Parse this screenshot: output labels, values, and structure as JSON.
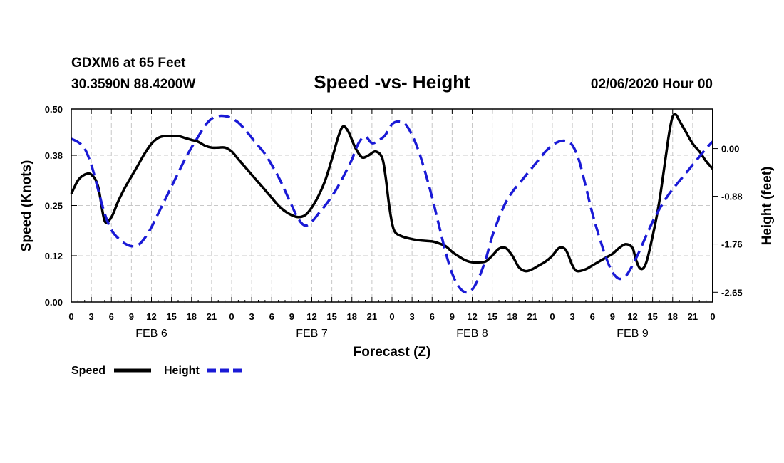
{
  "header": {
    "station": "GDXM6 at 65 Feet",
    "location": "30.3590N 88.4200W",
    "title": "Speed -vs- Height",
    "datetime": "02/06/2020 Hour 00"
  },
  "chart_data": {
    "type": "line",
    "title": "Speed -vs- Height",
    "xlabel": "Forecast (Z)",
    "ylabel": "Speed (Knots)",
    "y2label": "Height (feet)",
    "xlim": [
      0,
      96
    ],
    "ylim": [
      0,
      0.5
    ],
    "y2lim": [
      -2.83,
      0.73
    ],
    "grid": true,
    "x_tick_values": [
      0,
      3,
      6,
      9,
      12,
      15,
      18,
      21,
      24,
      27,
      30,
      33,
      36,
      39,
      42,
      45,
      48,
      51,
      54,
      57,
      60,
      63,
      66,
      69,
      72,
      75,
      78,
      81,
      84,
      87,
      90,
      93,
      96
    ],
    "x_tick_labels": [
      "0",
      "3",
      "6",
      "9",
      "12",
      "15",
      "18",
      "21",
      "0",
      "3",
      "6",
      "9",
      "12",
      "15",
      "18",
      "21",
      "0",
      "3",
      "6",
      "9",
      "12",
      "15",
      "18",
      "21",
      "0",
      "3",
      "6",
      "9",
      "12",
      "15",
      "18",
      "21",
      "0"
    ],
    "day_labels": [
      {
        "label": "FEB 6",
        "hour": 12
      },
      {
        "label": "FEB 7",
        "hour": 36
      },
      {
        "label": "FEB 8",
        "hour": 60
      },
      {
        "label": "FEB 9",
        "hour": 84
      }
    ],
    "y_ticks": [
      0.0,
      0.12,
      0.25,
      0.38,
      0.5
    ],
    "y_tick_labels": [
      "0.00",
      "0.12",
      "0.25",
      "0.38",
      "0.50"
    ],
    "y2_ticks": [
      0.0,
      -0.88,
      -1.76,
      -2.65
    ],
    "y2_tick_labels": [
      "0.00",
      "-0.88",
      "-1.76",
      "-2.65"
    ],
    "series": [
      {
        "name": "Speed",
        "axis": "left",
        "color": "#000000",
        "dash": false,
        "points": [
          [
            0,
            0.28
          ],
          [
            1,
            0.315
          ],
          [
            2,
            0.33
          ],
          [
            3,
            0.33
          ],
          [
            4,
            0.3
          ],
          [
            5,
            0.21
          ],
          [
            6,
            0.22
          ],
          [
            7,
            0.26
          ],
          [
            8,
            0.295
          ],
          [
            9,
            0.325
          ],
          [
            10,
            0.355
          ],
          [
            11,
            0.385
          ],
          [
            12,
            0.41
          ],
          [
            13,
            0.425
          ],
          [
            14,
            0.43
          ],
          [
            15,
            0.43
          ],
          [
            16,
            0.43
          ],
          [
            17,
            0.425
          ],
          [
            18,
            0.42
          ],
          [
            19,
            0.415
          ],
          [
            20,
            0.405
          ],
          [
            21,
            0.4
          ],
          [
            22,
            0.4
          ],
          [
            23,
            0.4
          ],
          [
            24,
            0.39
          ],
          [
            25,
            0.37
          ],
          [
            26,
            0.35
          ],
          [
            27,
            0.33
          ],
          [
            28,
            0.31
          ],
          [
            29,
            0.29
          ],
          [
            30,
            0.27
          ],
          [
            31,
            0.25
          ],
          [
            32,
            0.235
          ],
          [
            33,
            0.225
          ],
          [
            34,
            0.22
          ],
          [
            35,
            0.225
          ],
          [
            36,
            0.245
          ],
          [
            37,
            0.275
          ],
          [
            38,
            0.315
          ],
          [
            39,
            0.37
          ],
          [
            40,
            0.43
          ],
          [
            40.7,
            0.455
          ],
          [
            41.5,
            0.44
          ],
          [
            42.5,
            0.4
          ],
          [
            43.5,
            0.375
          ],
          [
            44.5,
            0.38
          ],
          [
            45.5,
            0.39
          ],
          [
            46.5,
            0.375
          ],
          [
            47,
            0.33
          ],
          [
            47.5,
            0.26
          ],
          [
            48,
            0.205
          ],
          [
            48.5,
            0.18
          ],
          [
            49.5,
            0.17
          ],
          [
            50.5,
            0.165
          ],
          [
            52,
            0.16
          ],
          [
            54,
            0.157
          ],
          [
            55,
            0.152
          ],
          [
            56,
            0.145
          ],
          [
            57,
            0.13
          ],
          [
            58,
            0.118
          ],
          [
            59,
            0.108
          ],
          [
            60,
            0.103
          ],
          [
            61,
            0.103
          ],
          [
            62,
            0.105
          ],
          [
            63,
            0.12
          ],
          [
            64,
            0.138
          ],
          [
            65,
            0.14
          ],
          [
            66,
            0.12
          ],
          [
            67,
            0.09
          ],
          [
            68,
            0.08
          ],
          [
            69,
            0.085
          ],
          [
            70,
            0.095
          ],
          [
            71,
            0.105
          ],
          [
            72,
            0.12
          ],
          [
            73,
            0.14
          ],
          [
            74,
            0.135
          ],
          [
            75,
            0.095
          ],
          [
            75.7,
            0.08
          ],
          [
            77,
            0.085
          ],
          [
            78,
            0.095
          ],
          [
            79,
            0.105
          ],
          [
            80,
            0.115
          ],
          [
            81,
            0.125
          ],
          [
            82,
            0.14
          ],
          [
            83,
            0.15
          ],
          [
            84,
            0.14
          ],
          [
            84.5,
            0.11
          ],
          [
            85.2,
            0.086
          ],
          [
            86,
            0.1
          ],
          [
            87,
            0.17
          ],
          [
            88,
            0.26
          ],
          [
            89,
            0.38
          ],
          [
            89.5,
            0.44
          ],
          [
            90,
            0.48
          ],
          [
            90.5,
            0.485
          ],
          [
            91,
            0.47
          ],
          [
            92,
            0.44
          ],
          [
            93,
            0.41
          ],
          [
            94,
            0.39
          ],
          [
            95,
            0.365
          ],
          [
            96,
            0.345
          ]
        ]
      },
      {
        "name": "Height",
        "axis": "right",
        "color": "#1a1ad6",
        "dash": true,
        "points": [
          [
            0,
            0.18
          ],
          [
            1,
            0.12
          ],
          [
            2,
            0.0
          ],
          [
            3,
            -0.3
          ],
          [
            4,
            -0.75
          ],
          [
            5,
            -1.2
          ],
          [
            6,
            -1.5
          ],
          [
            7,
            -1.65
          ],
          [
            8,
            -1.75
          ],
          [
            9,
            -1.8
          ],
          [
            10,
            -1.78
          ],
          [
            11,
            -1.65
          ],
          [
            12,
            -1.45
          ],
          [
            13,
            -1.2
          ],
          [
            14,
            -0.95
          ],
          [
            15,
            -0.7
          ],
          [
            16,
            -0.45
          ],
          [
            17,
            -0.2
          ],
          [
            18,
            0.02
          ],
          [
            19,
            0.22
          ],
          [
            20,
            0.42
          ],
          [
            21,
            0.55
          ],
          [
            22,
            0.6
          ],
          [
            23,
            0.6
          ],
          [
            24,
            0.56
          ],
          [
            25,
            0.48
          ],
          [
            26,
            0.35
          ],
          [
            27,
            0.2
          ],
          [
            28,
            0.05
          ],
          [
            29,
            -0.1
          ],
          [
            30,
            -0.3
          ],
          [
            31,
            -0.52
          ],
          [
            32,
            -0.78
          ],
          [
            33,
            -1.05
          ],
          [
            34,
            -1.3
          ],
          [
            35,
            -1.42
          ],
          [
            36,
            -1.35
          ],
          [
            37,
            -1.2
          ],
          [
            38,
            -1.05
          ],
          [
            39,
            -0.88
          ],
          [
            40,
            -0.68
          ],
          [
            41,
            -0.45
          ],
          [
            42,
            -0.2
          ],
          [
            43,
            0.1
          ],
          [
            44,
            0.22
          ],
          [
            45,
            0.1
          ],
          [
            46,
            0.15
          ],
          [
            47,
            0.25
          ],
          [
            48,
            0.45
          ],
          [
            49,
            0.5
          ],
          [
            50,
            0.45
          ],
          [
            51,
            0.25
          ],
          [
            52,
            -0.05
          ],
          [
            53,
            -0.45
          ],
          [
            54,
            -0.9
          ],
          [
            55,
            -1.4
          ],
          [
            56,
            -1.9
          ],
          [
            57,
            -2.3
          ],
          [
            58,
            -2.55
          ],
          [
            59,
            -2.65
          ],
          [
            60,
            -2.6
          ],
          [
            61,
            -2.38
          ],
          [
            62,
            -2.05
          ],
          [
            63,
            -1.62
          ],
          [
            64,
            -1.28
          ],
          [
            65,
            -1.0
          ],
          [
            66,
            -0.8
          ],
          [
            67,
            -0.65
          ],
          [
            68,
            -0.5
          ],
          [
            69,
            -0.35
          ],
          [
            70,
            -0.2
          ],
          [
            71,
            -0.05
          ],
          [
            72,
            0.06
          ],
          [
            73,
            0.13
          ],
          [
            74,
            0.14
          ],
          [
            75,
            0.06
          ],
          [
            76,
            -0.22
          ],
          [
            77,
            -0.7
          ],
          [
            78,
            -1.2
          ],
          [
            79,
            -1.62
          ],
          [
            80,
            -2.0
          ],
          [
            81,
            -2.28
          ],
          [
            82,
            -2.4
          ],
          [
            83,
            -2.35
          ],
          [
            84,
            -2.15
          ],
          [
            85,
            -1.9
          ],
          [
            86,
            -1.62
          ],
          [
            87,
            -1.35
          ],
          [
            88,
            -1.12
          ],
          [
            89,
            -0.92
          ],
          [
            90,
            -0.75
          ],
          [
            91,
            -0.6
          ],
          [
            92,
            -0.45
          ],
          [
            93,
            -0.3
          ],
          [
            94,
            -0.15
          ],
          [
            95,
            0.0
          ],
          [
            96,
            0.13
          ]
        ]
      }
    ],
    "legend": {
      "position": "bottom-left",
      "items": [
        {
          "label": "Speed",
          "color": "#000000",
          "dash": false
        },
        {
          "label": "Height",
          "color": "#1a1ad6",
          "dash": true
        }
      ]
    }
  }
}
